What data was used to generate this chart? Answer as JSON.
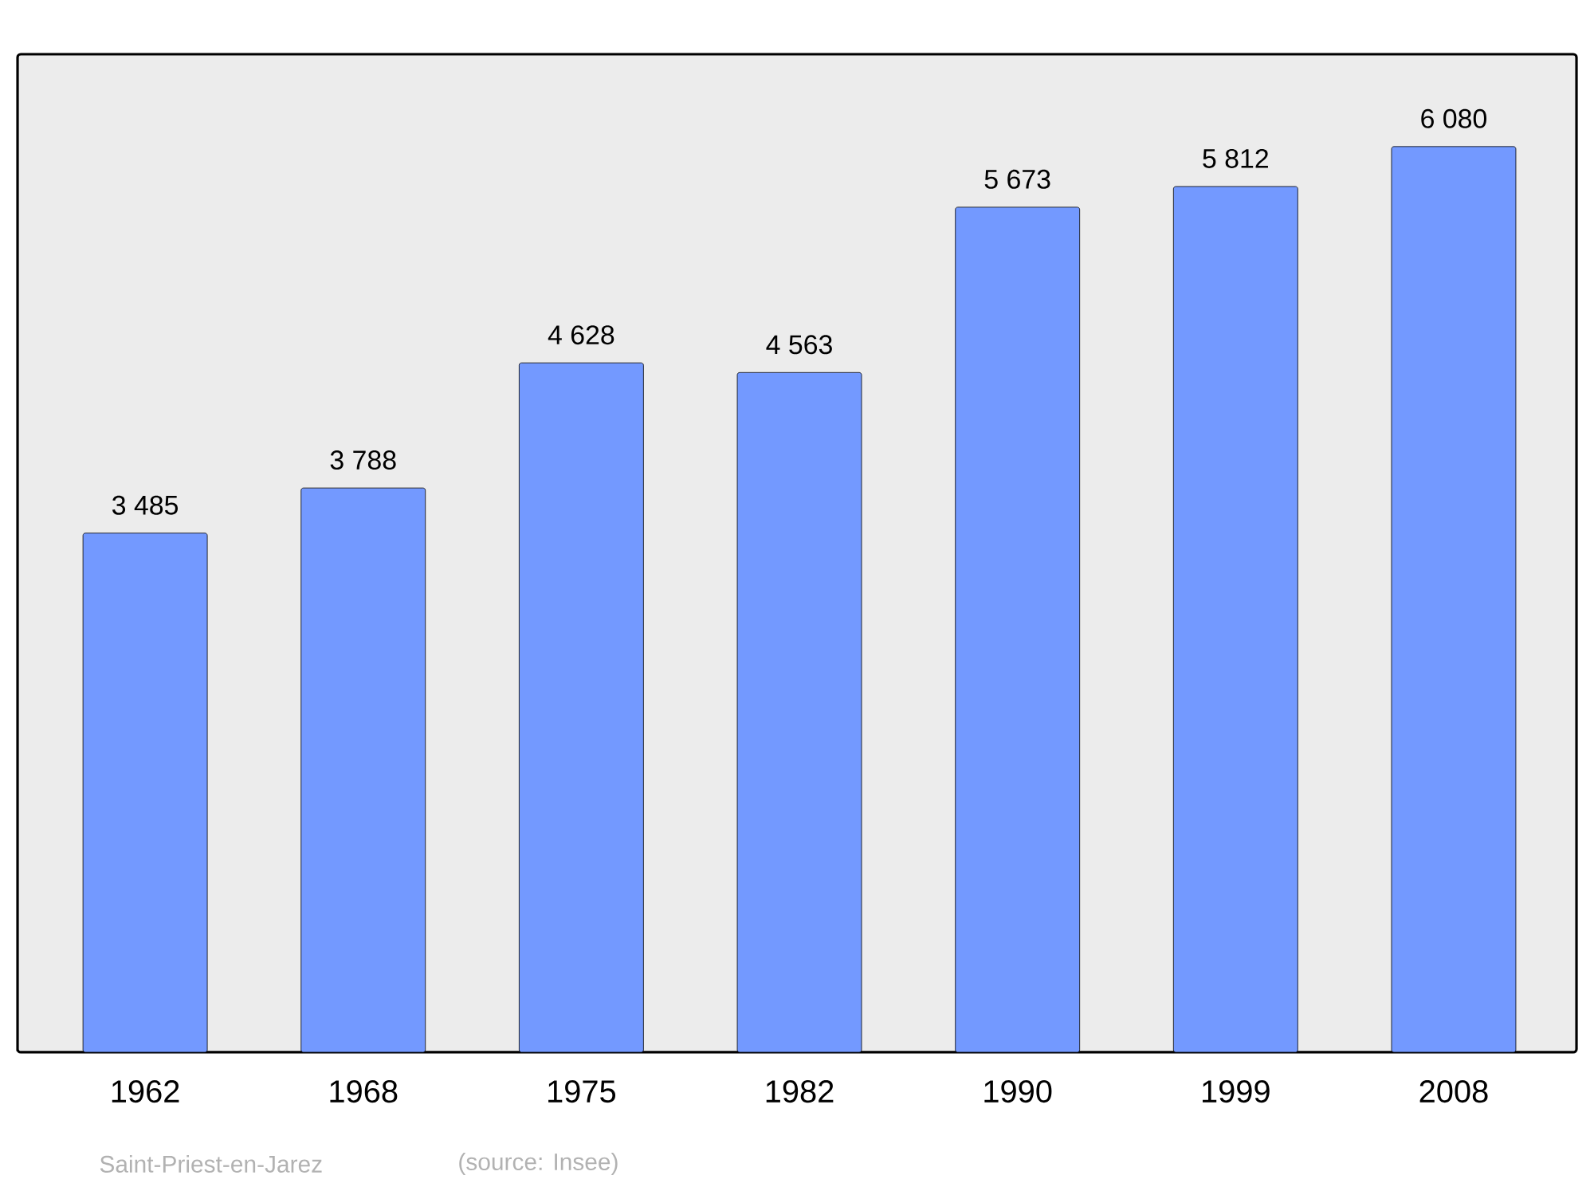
{
  "chart_data": {
    "type": "bar",
    "categories": [
      "1962",
      "1968",
      "1975",
      "1982",
      "1990",
      "1999",
      "2008"
    ],
    "values": [
      3485,
      3788,
      4628,
      4563,
      5673,
      5812,
      6080
    ],
    "value_labels": [
      "3 485",
      "3 788",
      "4 628",
      "4 563",
      "5 673",
      "5 812",
      "6 080"
    ],
    "color": "#7399ff",
    "ylim": [
      0,
      6700
    ],
    "tick_labels": "x",
    "annotations": [
      "Saint-Priest-en-Jarez",
      "(source: Insee)"
    ]
  }
}
